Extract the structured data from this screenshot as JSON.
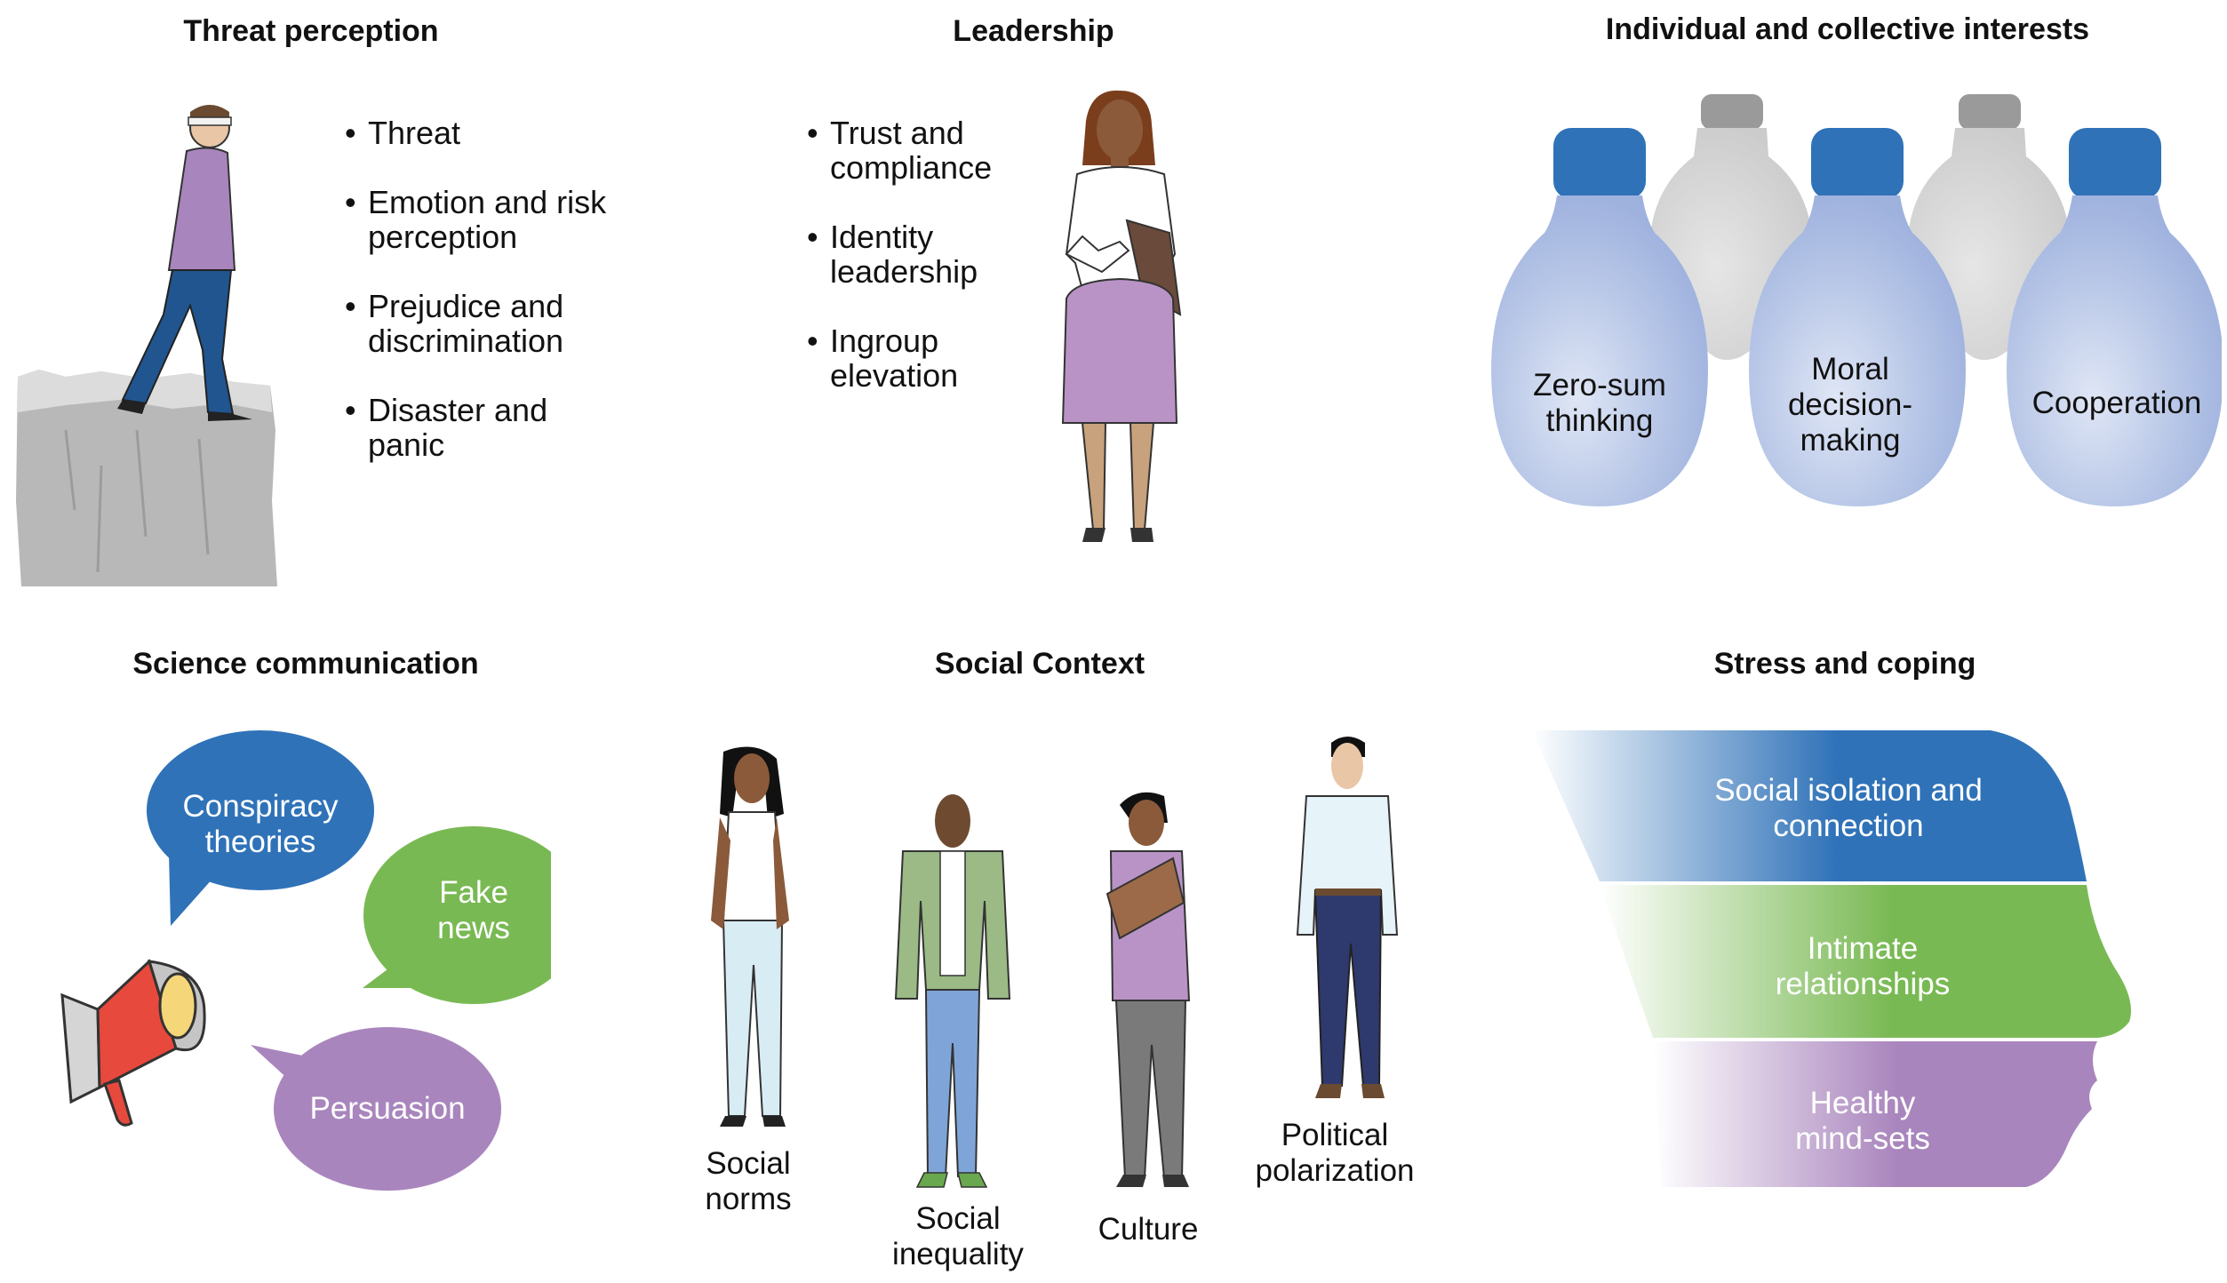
{
  "panels": {
    "threat": {
      "title": "Threat perception",
      "bullets": [
        [
          "Threat"
        ],
        [
          "Emotion and risk",
          "perception"
        ],
        [
          "Prejudice and",
          "discrimination"
        ],
        [
          "Disaster and",
          "panic"
        ]
      ]
    },
    "leadership": {
      "title": "Leadership",
      "bullets": [
        [
          "Trust and",
          "compliance"
        ],
        [
          "Identity",
          "leadership"
        ],
        [
          "Ingroup",
          "elevation"
        ]
      ]
    },
    "interests": {
      "title": "Individual and collective interests",
      "bulbs": [
        [
          "Zero-sum",
          "thinking"
        ],
        [
          "Moral",
          "decision-",
          "making"
        ],
        [
          "Cooperation"
        ]
      ]
    },
    "science": {
      "title": "Science communication",
      "bubbles": [
        [
          "Conspiracy",
          "theories"
        ],
        [
          "Fake",
          "news"
        ],
        [
          "Persuasion"
        ]
      ]
    },
    "social": {
      "title": "Social Context",
      "people": [
        [
          "Social",
          "norms"
        ],
        [
          "Social",
          "inequality"
        ],
        [
          "Culture"
        ],
        [
          "Political",
          "polarization"
        ]
      ]
    },
    "stress": {
      "title": "Stress and coping",
      "bands": [
        [
          "Social isolation and",
          "connection"
        ],
        [
          "Intimate",
          "relationships"
        ],
        [
          "Healthy",
          "mind-sets"
        ]
      ]
    }
  },
  "colors": {
    "blue": "#2f72b8",
    "green": "#79b953",
    "purple": "#a985bd",
    "bulb_blue_light": "#aebfe3",
    "bulb_gray": "#d0d0d0",
    "rock": "#b8b8b8"
  },
  "icons": [
    "woman-walking-off-cliff-illustration",
    "businesswoman-illustration",
    "lightbulb-icon",
    "megaphone-icon",
    "speech-bubble-icon",
    "person-illustration",
    "head-profile-illustration"
  ]
}
